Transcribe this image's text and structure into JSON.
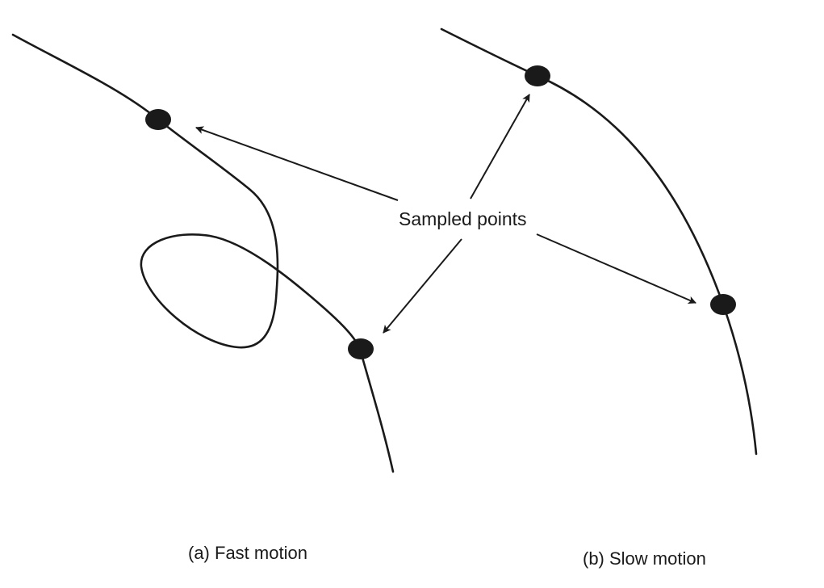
{
  "labels": {
    "sampled_points": "Sampled points",
    "caption_a": "(a) Fast motion",
    "caption_b": "(b) Slow motion"
  },
  "colors": {
    "ink": "#1a1a1a",
    "background": "#ffffff"
  }
}
